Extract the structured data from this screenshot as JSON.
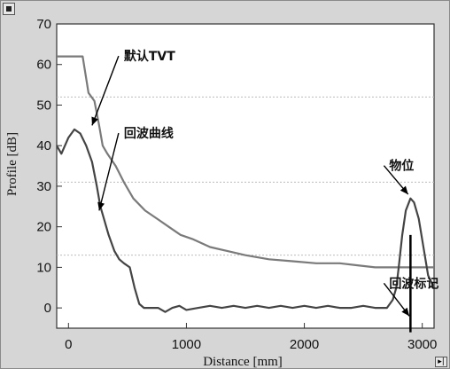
{
  "chart_data": {
    "type": "line",
    "xlabel": "Distance [mm]",
    "ylabel": "Profile [dB]",
    "xlim": [
      -100,
      3100
    ],
    "ylim": [
      -5,
      70
    ],
    "x_ticks": [
      0,
      1000,
      2000,
      3000
    ],
    "y_ticks": [
      0,
      10,
      20,
      30,
      40,
      50,
      60,
      70
    ],
    "grid_lines_y": [
      13,
      31,
      52
    ],
    "series": [
      {
        "id": "tvt",
        "color": "#7a7a7a",
        "points": [
          [
            -100,
            62
          ],
          [
            120,
            62
          ],
          [
            170,
            53
          ],
          [
            220,
            51
          ],
          [
            260,
            45
          ],
          [
            290,
            40
          ],
          [
            330,
            38
          ],
          [
            400,
            35
          ],
          [
            470,
            31
          ],
          [
            550,
            27
          ],
          [
            650,
            24
          ],
          [
            750,
            22
          ],
          [
            850,
            20
          ],
          [
            950,
            18
          ],
          [
            1050,
            17
          ],
          [
            1200,
            15
          ],
          [
            1350,
            14
          ],
          [
            1500,
            13
          ],
          [
            1700,
            12
          ],
          [
            1900,
            11.5
          ],
          [
            2100,
            11
          ],
          [
            2300,
            11
          ],
          [
            2450,
            10.5
          ],
          [
            2600,
            10
          ],
          [
            2800,
            10
          ],
          [
            3100,
            10
          ]
        ]
      },
      {
        "id": "echo",
        "color": "#444444",
        "points": [
          [
            -100,
            40
          ],
          [
            -60,
            38
          ],
          [
            -30,
            40
          ],
          [
            0,
            42
          ],
          [
            50,
            44
          ],
          [
            100,
            43
          ],
          [
            150,
            40
          ],
          [
            200,
            36
          ],
          [
            240,
            30
          ],
          [
            270,
            25
          ],
          [
            300,
            22
          ],
          [
            340,
            18
          ],
          [
            390,
            14
          ],
          [
            430,
            12
          ],
          [
            470,
            11
          ],
          [
            520,
            10
          ],
          [
            560,
            5
          ],
          [
            600,
            1
          ],
          [
            640,
            0
          ],
          [
            700,
            0
          ],
          [
            760,
            0
          ],
          [
            820,
            -1
          ],
          [
            880,
            0
          ],
          [
            940,
            0.5
          ],
          [
            1000,
            -0.5
          ],
          [
            1100,
            0
          ],
          [
            1200,
            0.5
          ],
          [
            1300,
            0
          ],
          [
            1400,
            0.5
          ],
          [
            1500,
            0
          ],
          [
            1600,
            0.5
          ],
          [
            1700,
            0
          ],
          [
            1800,
            0.5
          ],
          [
            1900,
            0
          ],
          [
            2000,
            0.5
          ],
          [
            2100,
            0
          ],
          [
            2200,
            0.5
          ],
          [
            2300,
            0
          ],
          [
            2400,
            0
          ],
          [
            2500,
            0.5
          ],
          [
            2600,
            0
          ],
          [
            2700,
            0
          ],
          [
            2750,
            2
          ],
          [
            2780,
            5
          ],
          [
            2800,
            10
          ],
          [
            2830,
            18
          ],
          [
            2860,
            24
          ],
          [
            2900,
            27
          ],
          [
            2930,
            26
          ],
          [
            2970,
            22
          ],
          [
            3010,
            15
          ],
          [
            3050,
            8
          ],
          [
            3100,
            5
          ]
        ]
      }
    ],
    "echo_marker": {
      "x": 2900,
      "y_top": 18,
      "y_bottom": -6
    },
    "annotations": [
      {
        "text": "默认TVT",
        "target": [
          200,
          45
        ],
        "label_at": [
          470,
          61
        ]
      },
      {
        "text": "回波曲线",
        "target": [
          260,
          24
        ],
        "label_at": [
          470,
          42
        ]
      },
      {
        "text": "物位",
        "target": [
          2880,
          28
        ],
        "label_at": [
          2720,
          34
        ]
      },
      {
        "text": "回波标记",
        "target": [
          2890,
          -2
        ],
        "label_at": [
          2720,
          5
        ]
      }
    ]
  },
  "window": {
    "corner_br_glyph": "▸|"
  }
}
